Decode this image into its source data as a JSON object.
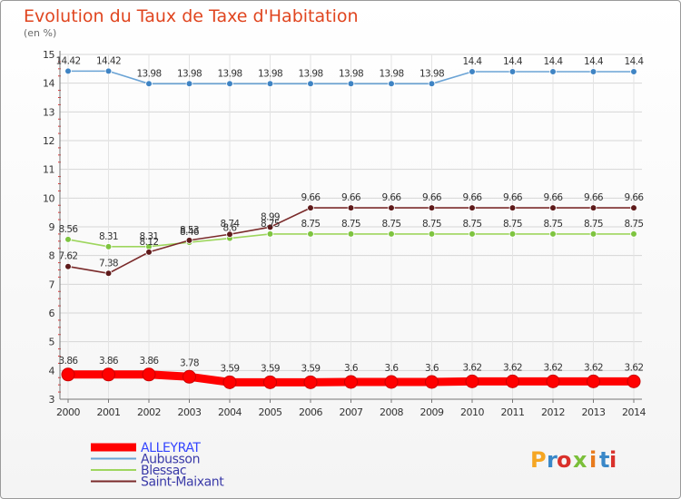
{
  "title": "Evolution du Taux de Taxe d'Habitation",
  "subtitle": "(en %)",
  "logo": {
    "text": "Proxiti",
    "letters": [
      "P",
      "r",
      "o",
      "x",
      "i",
      "t",
      "i"
    ],
    "colors": [
      "#f5a623",
      "#3a88c8",
      "#d9312b",
      "#7bbf3a",
      "#e87b1e",
      "#3a88c8",
      "#d9312b"
    ]
  },
  "chart_data": {
    "type": "line",
    "title": "Evolution du Taux de Taxe d'Habitation",
    "ylabel": "(en %)",
    "xlabel": "",
    "x": [
      "2000",
      "2001",
      "2002",
      "2003",
      "2004",
      "2005",
      "2006",
      "2007",
      "2008",
      "2009",
      "2010",
      "2011",
      "2012",
      "2013",
      "2014"
    ],
    "ylim": [
      3,
      15
    ],
    "yticks": [
      3,
      4,
      5,
      6,
      7,
      8,
      9,
      10,
      11,
      12,
      13,
      14,
      15
    ],
    "grid": true,
    "legend_position": "bottom-left",
    "series": [
      {
        "name": "ALLEYRAT",
        "color": "#ff0000",
        "marker_color": "#ff0000",
        "width": "heavy",
        "values": [
          3.86,
          3.86,
          3.86,
          3.78,
          3.59,
          3.59,
          3.59,
          3.6,
          3.6,
          3.6,
          3.62,
          3.62,
          3.62,
          3.62,
          3.62
        ],
        "labels": [
          "3.86",
          "3.86",
          "3.86",
          "3.78",
          "3.59",
          "3.59",
          "3.59",
          "3.6",
          "3.6",
          "3.6",
          "3.62",
          "3.62",
          "3.62",
          "3.62",
          "3.62"
        ]
      },
      {
        "name": "Aubusson",
        "color": "#6aa3d5",
        "marker_color": "#3f84c4",
        "width": "thin",
        "values": [
          14.42,
          14.42,
          13.98,
          13.98,
          13.98,
          13.98,
          13.98,
          13.98,
          13.98,
          13.98,
          14.4,
          14.4,
          14.4,
          14.4,
          14.4
        ],
        "labels": [
          "14.42",
          "14.42",
          "13.98",
          "13.98",
          "13.98",
          "13.98",
          "13.98",
          "13.98",
          "13.98",
          "13.98",
          "14.4",
          "14.4",
          "14.4",
          "14.4",
          "14.4"
        ]
      },
      {
        "name": "Blessac",
        "color": "#9ed65e",
        "marker_color": "#7ec440",
        "width": "thin",
        "values": [
          8.56,
          8.31,
          8.31,
          8.46,
          8.6,
          8.75,
          8.75,
          8.75,
          8.75,
          8.75,
          8.75,
          8.75,
          8.75,
          8.75,
          8.75
        ],
        "labels": [
          "8.56",
          "8.31",
          "8.31",
          "8.46",
          "8.6",
          "8.75",
          "8.75",
          "8.75",
          "8.75",
          "8.75",
          "8.75",
          "8.75",
          "8.75",
          "8.75",
          "8.75"
        ]
      },
      {
        "name": "Saint-Maixant",
        "color": "#7a2a2a",
        "marker_color": "#5e1a1a",
        "width": "thin",
        "values": [
          7.62,
          7.38,
          8.12,
          8.53,
          8.74,
          8.99,
          9.66,
          9.66,
          9.66,
          9.66,
          9.66,
          9.66,
          9.66,
          9.66,
          9.66
        ],
        "labels": [
          "7.62",
          "7.38",
          "8.12",
          "8.53",
          "8.74",
          "8.99",
          "9.66",
          "9.66",
          "9.66",
          "9.66",
          "9.66",
          "9.66",
          "9.66",
          "9.66",
          "9.66"
        ]
      }
    ]
  }
}
